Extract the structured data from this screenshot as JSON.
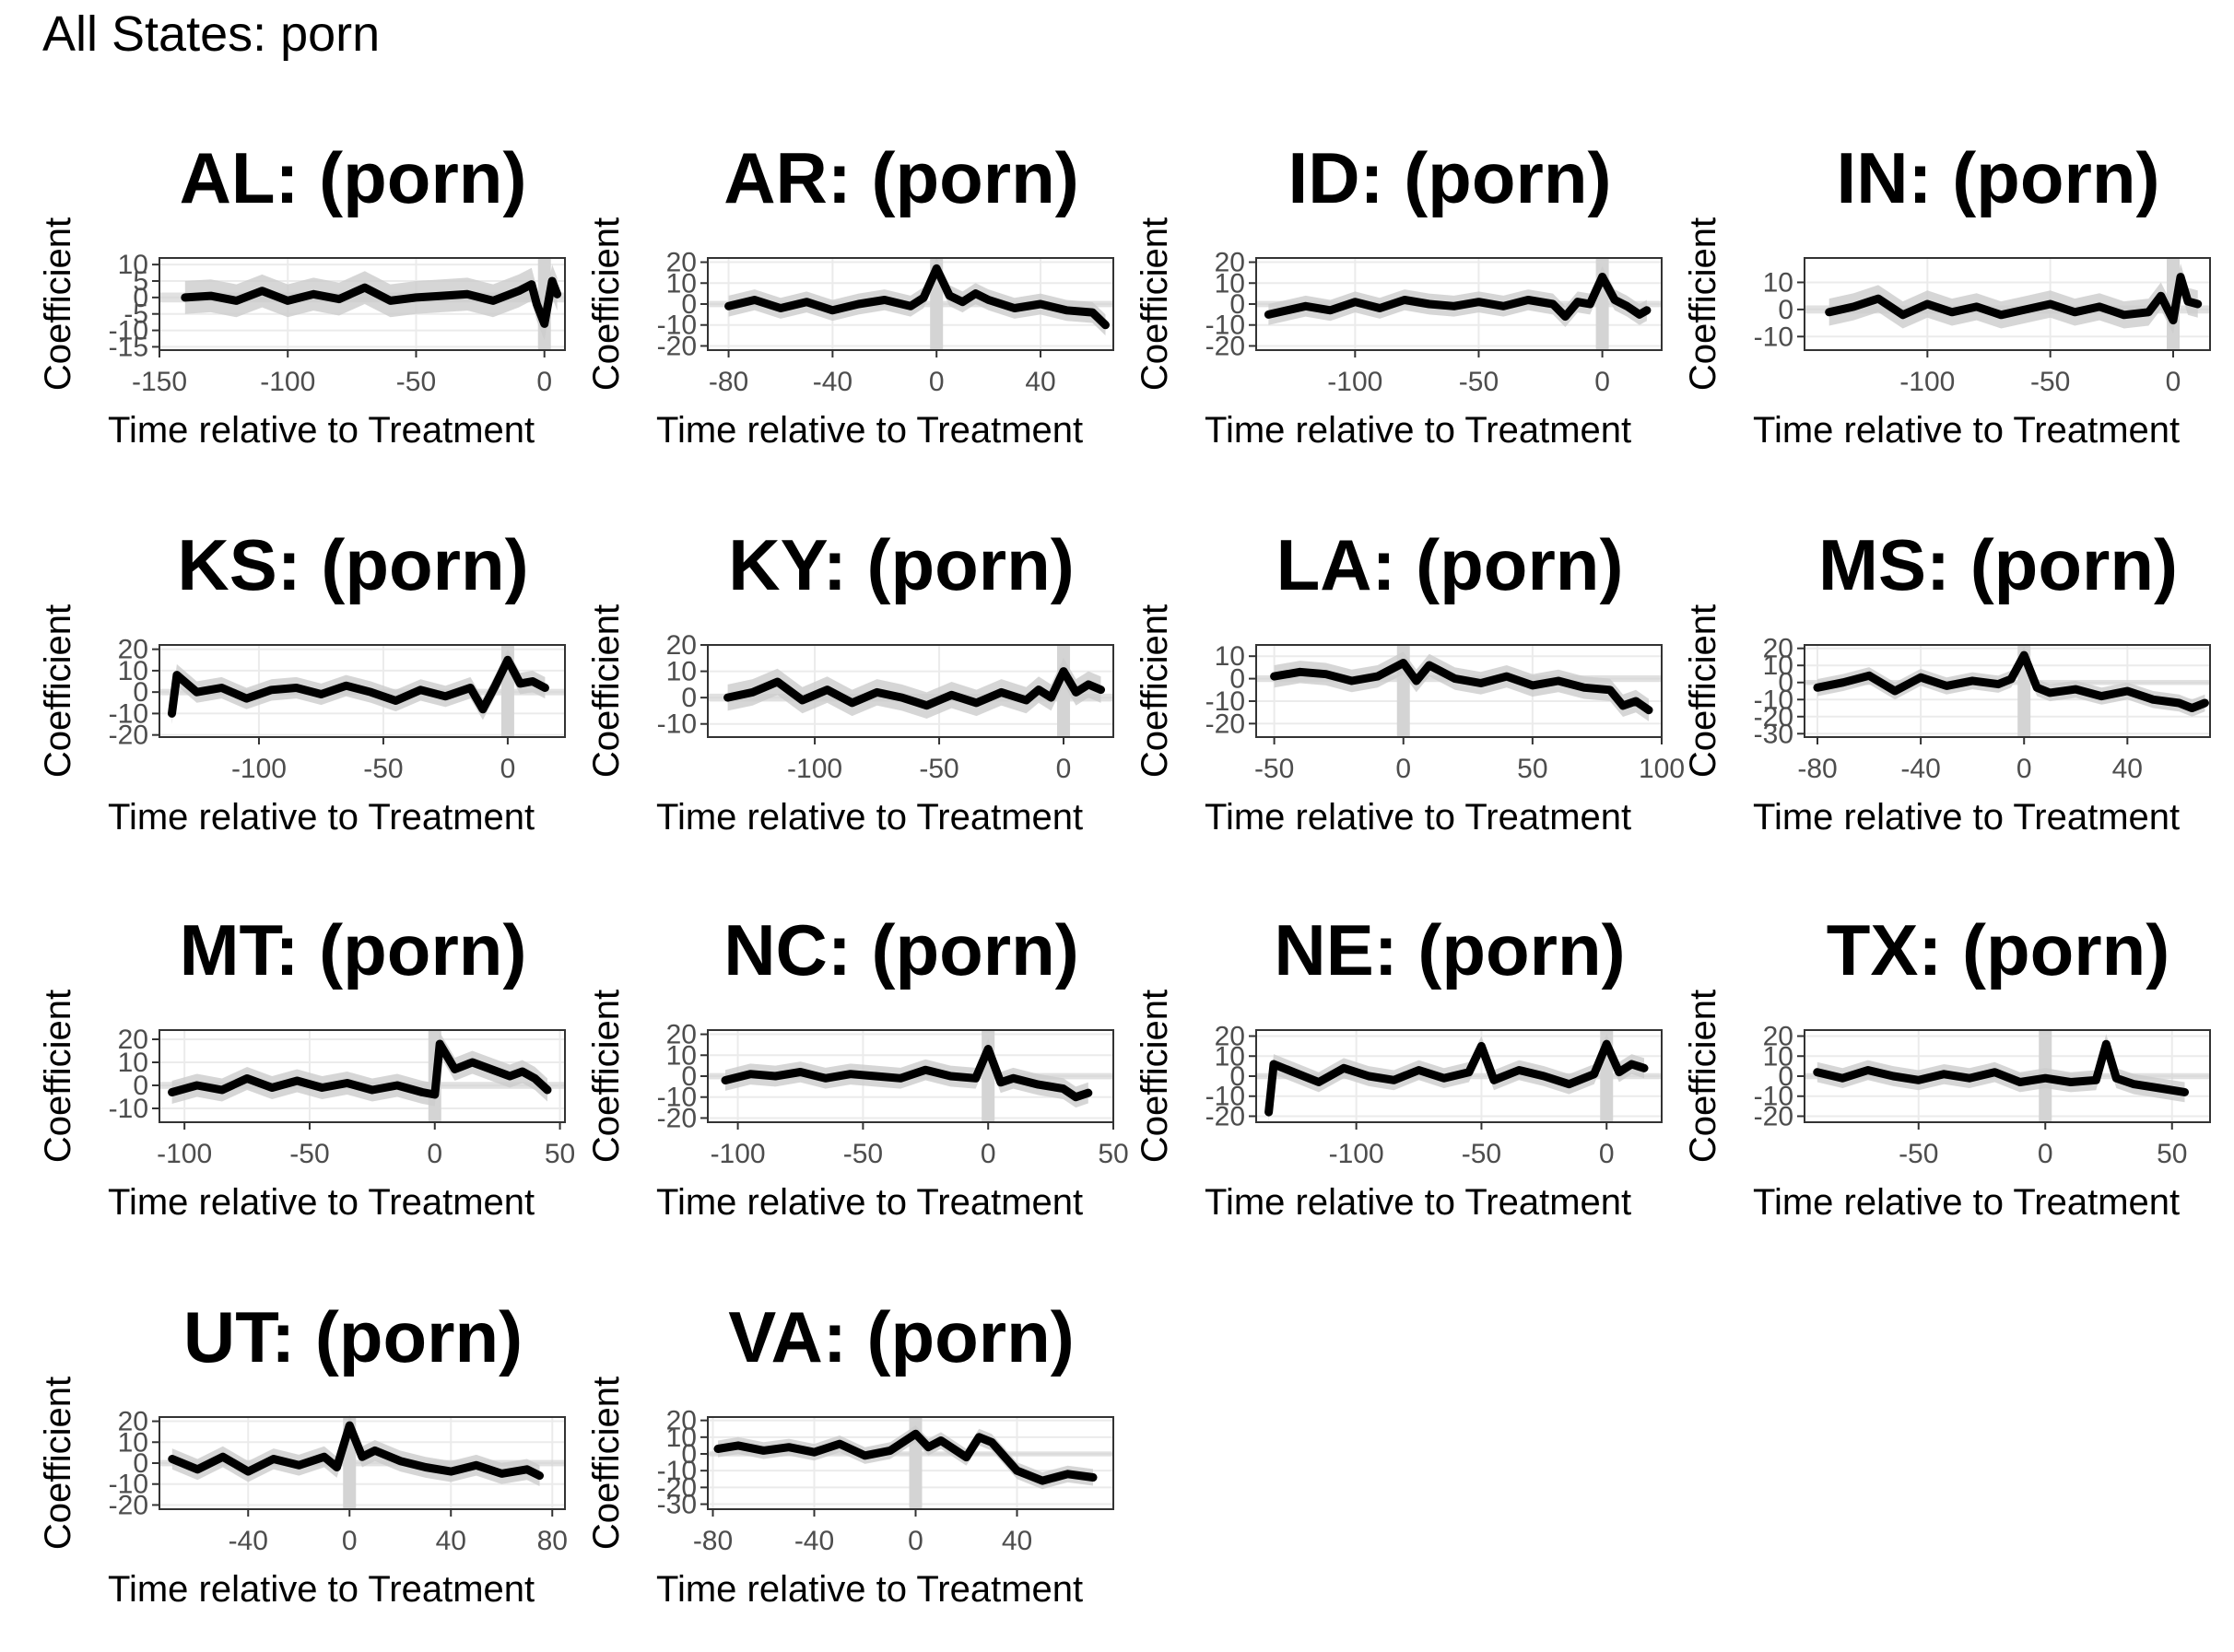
{
  "page": {
    "title": "All States: porn"
  },
  "colors": {
    "line": "#000000",
    "ribbon": "#cccccc",
    "band": "#d4d4d4",
    "grid": "#ebebeb",
    "frame": "#333333",
    "tick_text": "#4d4d4d"
  },
  "chart_data": [
    {
      "type": "line",
      "title": "AL: (porn)",
      "xlabel": "Time relative to Treatment",
      "ylabel": "Coefficient",
      "xlim": [
        -150,
        8
      ],
      "ylim": [
        -16,
        12
      ],
      "xticks": [
        -150,
        -100,
        -50,
        0
      ],
      "yticks": [
        10,
        5,
        0,
        -5,
        -10,
        -15
      ],
      "x": [
        -140,
        -130,
        -120,
        -110,
        -100,
        -90,
        -80,
        -70,
        -60,
        -50,
        -40,
        -30,
        -20,
        -10,
        -5,
        -3,
        0,
        3,
        5
      ],
      "values": [
        0,
        0.5,
        -1,
        2,
        -1,
        1,
        -0.5,
        3,
        -1,
        0,
        0.5,
        1,
        -1,
        2,
        4,
        -2,
        -8,
        5,
        1
      ]
    },
    {
      "type": "line",
      "title": "AR: (porn)",
      "xlabel": "Time relative to Treatment",
      "ylabel": "Coefficient",
      "xlim": [
        -88,
        68
      ],
      "ylim": [
        -22,
        22
      ],
      "xticks": [
        -80,
        -40,
        0,
        40
      ],
      "yticks": [
        20,
        10,
        0,
        -10,
        -20
      ],
      "x": [
        -80,
        -70,
        -60,
        -50,
        -40,
        -30,
        -20,
        -10,
        -5,
        0,
        5,
        10,
        15,
        20,
        30,
        40,
        50,
        60,
        65
      ],
      "values": [
        -1,
        2,
        -2,
        1,
        -3,
        0,
        2,
        -1,
        3,
        17,
        4,
        1,
        5,
        2,
        -2,
        0,
        -3,
        -4,
        -10
      ]
    },
    {
      "type": "line",
      "title": "ID: (porn)",
      "xlabel": "Time relative to Treatment",
      "ylabel": "Coefficient",
      "xlim": [
        -140,
        24
      ],
      "ylim": [
        -22,
        22
      ],
      "xticks": [
        -100,
        -50,
        0
      ],
      "yticks": [
        20,
        10,
        0,
        -10,
        -20
      ],
      "x": [
        -135,
        -120,
        -110,
        -100,
        -90,
        -80,
        -70,
        -60,
        -50,
        -40,
        -30,
        -20,
        -15,
        -10,
        -5,
        0,
        5,
        10,
        15,
        18
      ],
      "values": [
        -5,
        -1,
        -3,
        1,
        -2,
        2,
        0,
        -1,
        1,
        -1,
        2,
        0,
        -6,
        1,
        0,
        13,
        2,
        -1,
        -5,
        -3
      ]
    },
    {
      "type": "line",
      "title": "IN: (porn)",
      "xlabel": "Time relative to Treatment",
      "ylabel": "Coefficient",
      "xlim": [
        -150,
        15
      ],
      "ylim": [
        -15,
        19
      ],
      "xticks": [
        -100,
        -50,
        0
      ],
      "yticks": [
        10,
        0,
        -10
      ],
      "x": [
        -140,
        -130,
        -120,
        -110,
        -100,
        -90,
        -80,
        -70,
        -60,
        -50,
        -40,
        -30,
        -20,
        -10,
        -5,
        0,
        3,
        6,
        10
      ],
      "values": [
        -1,
        1,
        4,
        -2,
        2,
        -1,
        1,
        -2,
        0,
        2,
        -1,
        1,
        -2,
        -1,
        5,
        -4,
        12,
        3,
        2
      ]
    },
    {
      "type": "line",
      "title": "KS: (porn)",
      "xlabel": "Time relative to Treatment",
      "ylabel": "Coefficient",
      "xlim": [
        -140,
        23
      ],
      "ylim": [
        -21,
        22
      ],
      "xticks": [
        -100,
        -50,
        0
      ],
      "yticks": [
        20,
        10,
        0,
        -10,
        -20
      ],
      "x": [
        -135,
        -133,
        -125,
        -115,
        -105,
        -95,
        -85,
        -75,
        -65,
        -55,
        -45,
        -35,
        -25,
        -15,
        -10,
        -5,
        0,
        5,
        10,
        15
      ],
      "values": [
        -10,
        8,
        0,
        2,
        -3,
        1,
        2,
        -1,
        3,
        0,
        -4,
        1,
        -2,
        2,
        -8,
        3,
        15,
        4,
        5,
        2
      ]
    },
    {
      "type": "line",
      "title": "KY: (porn)",
      "xlabel": "Time relative to Treatment",
      "ylabel": "Coefficient",
      "xlim": [
        -143,
        20
      ],
      "ylim": [
        -15,
        20
      ],
      "xticks": [
        -100,
        -50,
        0
      ],
      "yticks": [
        20,
        10,
        0,
        -10
      ],
      "x": [
        -135,
        -125,
        -115,
        -105,
        -95,
        -85,
        -75,
        -65,
        -55,
        -45,
        -35,
        -25,
        -15,
        -10,
        -5,
        0,
        5,
        10,
        15
      ],
      "values": [
        0,
        2,
        6,
        -1,
        3,
        -2,
        2,
        0,
        -3,
        1,
        -2,
        2,
        -1,
        3,
        0,
        10,
        2,
        5,
        3
      ]
    },
    {
      "type": "line",
      "title": "LA: (porn)",
      "xlabel": "Time relative to Treatment",
      "ylabel": "Coefficient",
      "xlim": [
        -57,
        100
      ],
      "ylim": [
        -26,
        15
      ],
      "xticks": [
        -50,
        0,
        50,
        100
      ],
      "yticks": [
        10,
        0,
        -10,
        -20
      ],
      "x": [
        -50,
        -40,
        -30,
        -20,
        -10,
        0,
        5,
        10,
        20,
        30,
        40,
        50,
        60,
        70,
        80,
        85,
        90,
        95
      ],
      "values": [
        1,
        3,
        2,
        -1,
        1,
        7,
        -1,
        6,
        0,
        -2,
        1,
        -3,
        -1,
        -4,
        -5,
        -12,
        -10,
        -14
      ]
    },
    {
      "type": "line",
      "title": "MS: (porn)",
      "xlabel": "Time relative to Treatment",
      "ylabel": "Coefficient",
      "xlim": [
        -85,
        72
      ],
      "ylim": [
        -32,
        22
      ],
      "xticks": [
        -80,
        -40,
        0,
        40
      ],
      "yticks": [
        20,
        10,
        0,
        -10,
        -20,
        -30
      ],
      "x": [
        -80,
        -70,
        -60,
        -50,
        -40,
        -30,
        -20,
        -10,
        -5,
        0,
        5,
        10,
        20,
        30,
        40,
        50,
        60,
        65,
        70
      ],
      "values": [
        -3,
        0,
        4,
        -5,
        3,
        -2,
        1,
        -1,
        2,
        16,
        -3,
        -6,
        -4,
        -8,
        -5,
        -10,
        -12,
        -15,
        -12
      ]
    },
    {
      "type": "line",
      "title": "MT: (porn)",
      "xlabel": "Time relative to Treatment",
      "ylabel": "Coefficient",
      "xlim": [
        -110,
        52
      ],
      "ylim": [
        -16,
        24
      ],
      "xticks": [
        -100,
        -50,
        0,
        50
      ],
      "yticks": [
        20,
        10,
        0,
        -10
      ],
      "x": [
        -105,
        -95,
        -85,
        -75,
        -65,
        -55,
        -45,
        -35,
        -25,
        -15,
        -5,
        0,
        2,
        8,
        15,
        20,
        30,
        35,
        40,
        45
      ],
      "values": [
        -3,
        0,
        -2,
        3,
        -1,
        2,
        -1,
        1,
        -2,
        0,
        -3,
        -4,
        18,
        7,
        10,
        8,
        4,
        6,
        3,
        -2
      ]
    },
    {
      "type": "line",
      "title": "NC: (porn)",
      "xlabel": "Time relative to Treatment",
      "ylabel": "Coefficient",
      "xlim": [
        -112,
        50
      ],
      "ylim": [
        -22,
        22
      ],
      "xticks": [
        -100,
        -50,
        0,
        50
      ],
      "yticks": [
        20,
        10,
        0,
        -10,
        -20
      ],
      "x": [
        -105,
        -95,
        -85,
        -75,
        -65,
        -55,
        -45,
        -35,
        -25,
        -15,
        -5,
        0,
        5,
        10,
        20,
        30,
        35,
        40
      ],
      "values": [
        -2,
        1,
        0,
        2,
        -1,
        1,
        0,
        -1,
        3,
        0,
        -1,
        13,
        -3,
        -1,
        -4,
        -6,
        -10,
        -8
      ]
    },
    {
      "type": "line",
      "title": "NE: (porn)",
      "xlabel": "Time relative to Treatment",
      "ylabel": "Coefficient",
      "xlim": [
        -140,
        22
      ],
      "ylim": [
        -23,
        23
      ],
      "xticks": [
        -100,
        -50,
        0
      ],
      "yticks": [
        20,
        10,
        0,
        -10,
        -20
      ],
      "x": [
        -135,
        -133,
        -125,
        -115,
        -105,
        -95,
        -85,
        -75,
        -65,
        -55,
        -50,
        -45,
        -35,
        -25,
        -15,
        -5,
        0,
        5,
        10,
        15
      ],
      "values": [
        -18,
        6,
        2,
        -3,
        4,
        0,
        -2,
        3,
        -1,
        2,
        15,
        -2,
        3,
        0,
        -4,
        1,
        16,
        2,
        6,
        4
      ]
    },
    {
      "type": "line",
      "title": "TX: (porn)",
      "xlabel": "Time relative to Treatment",
      "ylabel": "Coefficient",
      "xlim": [
        -95,
        65
      ],
      "ylim": [
        -23,
        23
      ],
      "xticks": [
        -50,
        0,
        50
      ],
      "yticks": [
        20,
        10,
        0,
        -10,
        -20
      ],
      "x": [
        -90,
        -80,
        -70,
        -60,
        -50,
        -40,
        -30,
        -20,
        -10,
        0,
        10,
        20,
        24,
        28,
        35,
        45,
        55
      ],
      "values": [
        2,
        -1,
        3,
        0,
        -2,
        1,
        -1,
        2,
        -3,
        -1,
        -3,
        -2,
        16,
        -1,
        -4,
        -6,
        -8
      ]
    },
    {
      "type": "line",
      "title": "UT: (porn)",
      "xlabel": "Time relative to Treatment",
      "ylabel": "Coefficient",
      "xlim": [
        -75,
        85
      ],
      "ylim": [
        -22,
        22
      ],
      "xticks": [
        -40,
        0,
        40,
        80
      ],
      "yticks": [
        20,
        10,
        0,
        -10,
        -20
      ],
      "x": [
        -70,
        -60,
        -50,
        -40,
        -30,
        -20,
        -10,
        -5,
        0,
        5,
        10,
        20,
        30,
        40,
        50,
        60,
        70,
        75
      ],
      "values": [
        2,
        -3,
        3,
        -4,
        2,
        -1,
        3,
        -2,
        18,
        3,
        6,
        1,
        -2,
        -4,
        -1,
        -5,
        -3,
        -6
      ]
    },
    {
      "type": "line",
      "title": "VA: (porn)",
      "xlabel": "Time relative to Treatment",
      "ylabel": "Coefficient",
      "xlim": [
        -82,
        78
      ],
      "ylim": [
        -33,
        22
      ],
      "xticks": [
        -80,
        -40,
        0,
        40
      ],
      "yticks": [
        20,
        10,
        0,
        -10,
        -20,
        -30
      ],
      "x": [
        -78,
        -70,
        -60,
        -50,
        -40,
        -30,
        -20,
        -10,
        0,
        5,
        10,
        20,
        25,
        30,
        40,
        50,
        60,
        70
      ],
      "values": [
        3,
        5,
        2,
        4,
        1,
        6,
        -1,
        2,
        12,
        4,
        8,
        -2,
        10,
        7,
        -10,
        -16,
        -12,
        -14
      ]
    }
  ]
}
